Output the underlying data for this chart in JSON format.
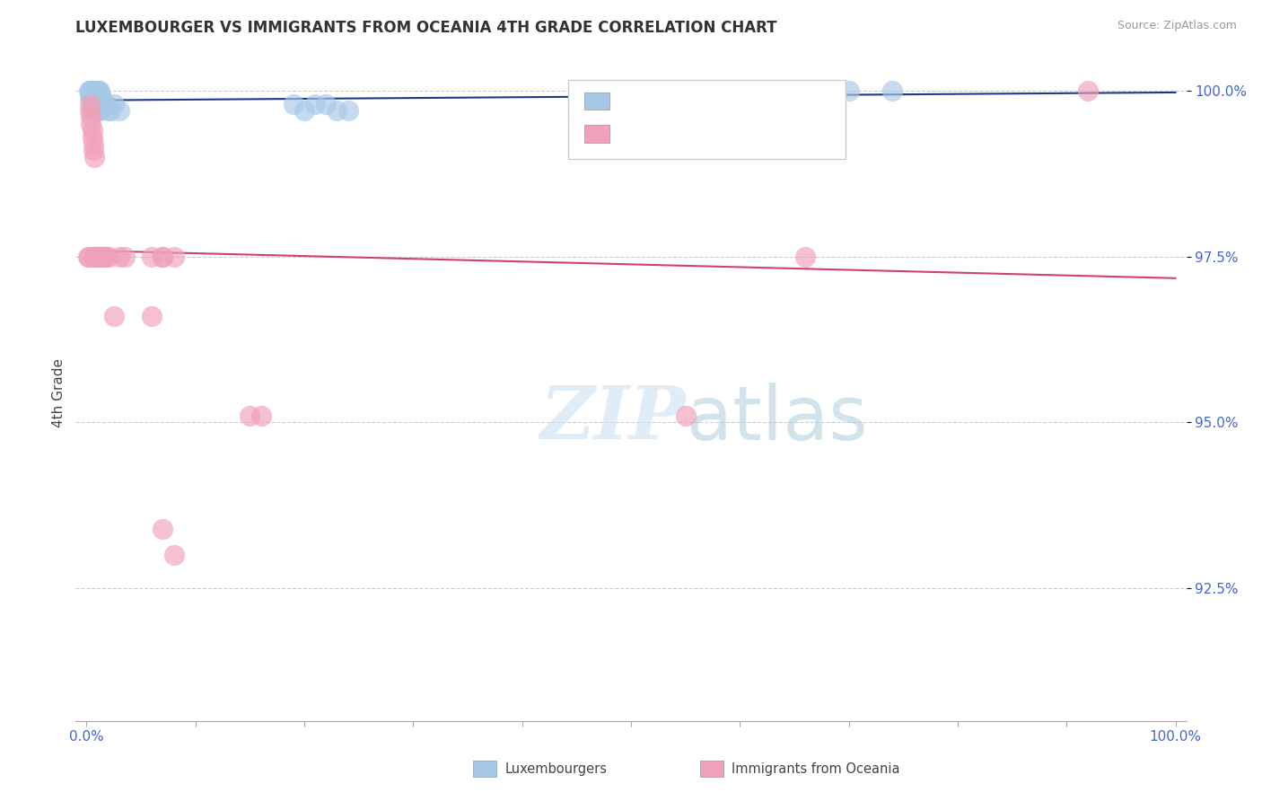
{
  "title": "LUXEMBOURGER VS IMMIGRANTS FROM OCEANIA 4TH GRADE CORRELATION CHART",
  "source": "Source: ZipAtlas.com",
  "ylabel": "4th Grade",
  "blue_color": "#a8c8e8",
  "pink_color": "#f0a0b8",
  "blue_line_color": "#1a3a8a",
  "pink_line_color": "#d04070",
  "grid_color": "#cccccc",
  "ytick_color": "#4466cc",
  "xtick_color": "#4466cc",
  "blue_x": [
    0.002,
    0.003,
    0.003,
    0.004,
    0.004,
    0.005,
    0.005,
    0.006,
    0.006,
    0.006,
    0.007,
    0.007,
    0.007,
    0.008,
    0.008,
    0.009,
    0.009,
    0.01,
    0.01,
    0.011,
    0.011,
    0.012,
    0.012,
    0.013,
    0.014,
    0.015,
    0.016,
    0.018,
    0.02,
    0.022,
    0.025,
    0.03,
    0.005,
    0.006,
    0.007,
    0.008,
    0.009,
    0.01,
    0.011,
    0.012,
    0.19,
    0.2,
    0.21,
    0.22,
    0.23,
    0.24,
    0.6,
    0.64,
    0.7,
    0.74
  ],
  "blue_y": [
    1.0,
    1.0,
    0.999,
    1.0,
    0.999,
    1.0,
    0.999,
    1.0,
    0.999,
    0.998,
    1.0,
    0.999,
    0.998,
    1.0,
    0.999,
    1.0,
    0.999,
    1.0,
    0.999,
    1.0,
    0.999,
    1.0,
    0.999,
    0.999,
    0.999,
    0.998,
    0.998,
    0.998,
    0.997,
    0.997,
    0.998,
    0.997,
    0.998,
    0.997,
    0.998,
    0.997,
    0.998,
    0.997,
    0.998,
    0.997,
    0.998,
    0.997,
    0.998,
    0.998,
    0.997,
    0.997,
    1.0,
    1.0,
    1.0,
    1.0
  ],
  "pink_x": [
    0.001,
    0.002,
    0.003,
    0.003,
    0.004,
    0.004,
    0.005,
    0.005,
    0.006,
    0.006,
    0.007,
    0.007,
    0.008,
    0.009,
    0.01,
    0.011,
    0.012,
    0.013,
    0.015,
    0.016,
    0.018,
    0.02,
    0.025,
    0.03,
    0.035,
    0.06,
    0.07,
    0.08,
    0.15,
    0.16,
    0.07,
    0.08,
    0.06,
    0.07,
    0.55,
    0.66,
    0.92
  ],
  "pink_y": [
    0.975,
    0.975,
    0.998,
    0.997,
    0.996,
    0.995,
    0.994,
    0.993,
    0.992,
    0.991,
    0.99,
    0.975,
    0.975,
    0.975,
    0.975,
    0.975,
    0.975,
    0.975,
    0.975,
    0.975,
    0.975,
    0.975,
    0.966,
    0.975,
    0.975,
    0.966,
    0.975,
    0.975,
    0.951,
    0.951,
    0.934,
    0.93,
    0.975,
    0.975,
    0.951,
    0.975,
    1.0
  ]
}
